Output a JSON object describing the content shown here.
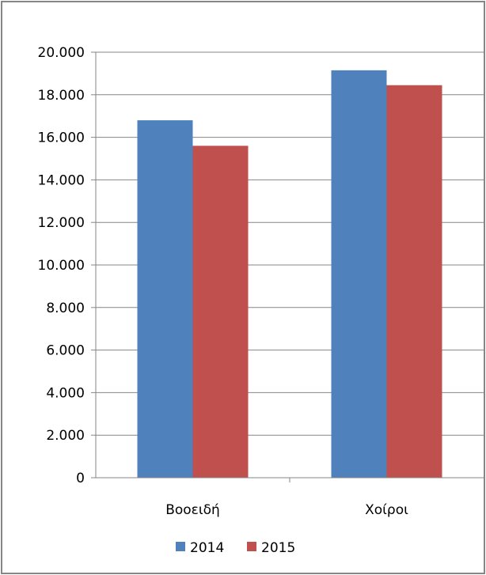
{
  "chart_data": {
    "type": "bar",
    "categories": [
      "Βοοειδή",
      "Χοίροι"
    ],
    "series": [
      {
        "name": "2014",
        "color": "#4F81BD",
        "values": [
          16800,
          19150
        ]
      },
      {
        "name": "2015",
        "color": "#C0504D",
        "values": [
          15600,
          18450
        ]
      }
    ],
    "ylim": [
      0,
      20000
    ],
    "y_ticks": [
      0,
      2000,
      4000,
      6000,
      8000,
      10000,
      12000,
      14000,
      16000,
      18000,
      20000
    ],
    "y_tick_labels": [
      "0",
      "2.000",
      "4.000",
      "6.000",
      "8.000",
      "10.000",
      "12.000",
      "14.000",
      "16.000",
      "18.000",
      "20.000"
    ],
    "title": "",
    "xlabel": "",
    "ylabel": "",
    "grid": true,
    "legend_position": "bottom"
  }
}
